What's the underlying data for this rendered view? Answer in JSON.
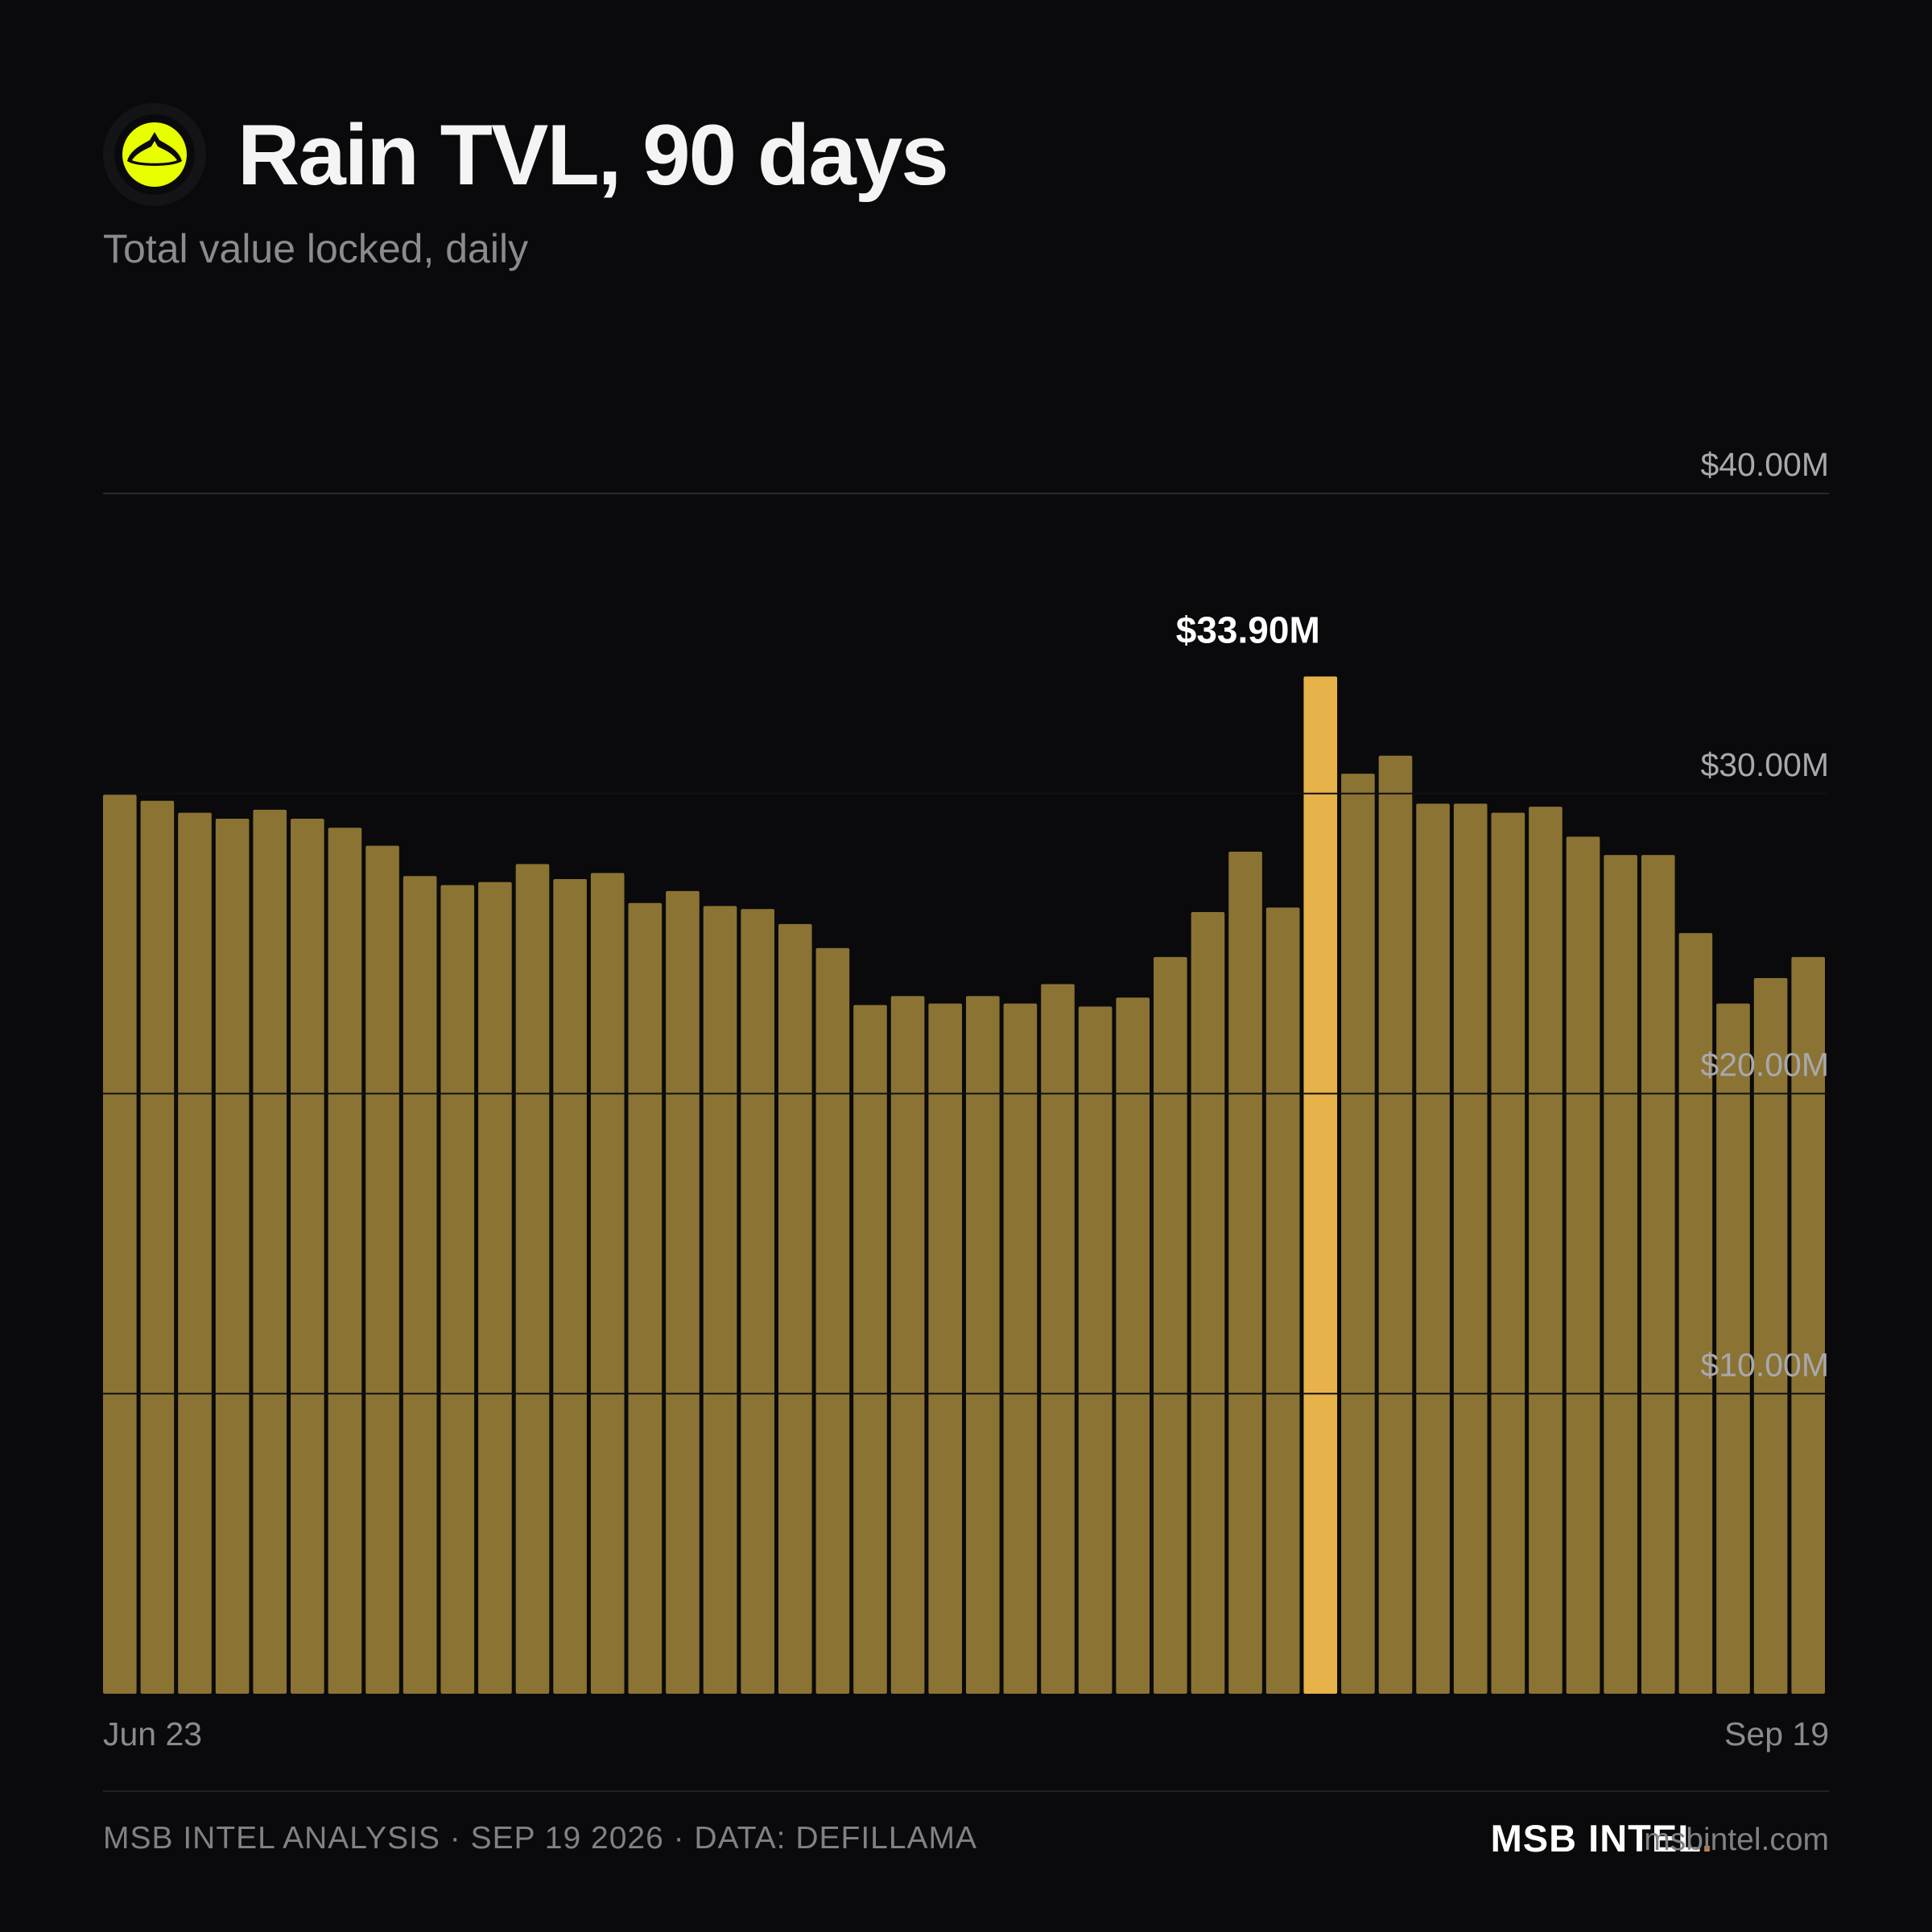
{
  "header": {
    "logo_icon": "rain-logo-icon",
    "title": "Rain TVL, 90 days",
    "subtitle": "Total value locked, daily"
  },
  "chart_data": {
    "type": "bar",
    "title": "Rain TVL, 90 days",
    "subtitle": "Total value locked, daily",
    "xlabel": "",
    "ylabel": "",
    "x_tick_labels": [
      "Jun 23",
      "Sep 19"
    ],
    "y_tick_labels": [
      "$10.00M",
      "$20.00M",
      "$30.00M",
      "$40.00M"
    ],
    "y_ticks": [
      10,
      20,
      30,
      40
    ],
    "ylim": [
      0,
      40
    ],
    "unit": "$M",
    "grid": true,
    "legend": "none",
    "bar_color": "#8b7333",
    "highlight_color": "#e8b24a",
    "highlight_index": 32,
    "highlight_label": "$33.90M",
    "values": [
      29.96,
      29.76,
      29.36,
      29.16,
      29.46,
      29.16,
      28.86,
      28.26,
      27.25,
      26.95,
      27.05,
      27.65,
      27.15,
      27.35,
      26.35,
      26.75,
      26.25,
      26.15,
      25.65,
      24.85,
      22.95,
      23.25,
      23.0,
      23.25,
      23.0,
      23.65,
      22.9,
      23.2,
      24.55,
      26.05,
      28.06,
      26.2,
      33.9,
      30.66,
      31.26,
      29.66,
      29.66,
      29.36,
      29.56,
      28.56,
      27.95,
      27.95,
      25.35,
      23.0,
      23.85,
      24.55
    ]
  },
  "footer": {
    "credit": "MSB INTEL ANALYSIS · SEP 19 2026 · DATA: DEFILLAMA",
    "brand": "MSB INTEL",
    "brand_dot": ".",
    "url": "msbintel.com"
  },
  "colors": {
    "background": "#0a0a0c",
    "bar": "#8b7333",
    "highlight": "#e8b24a",
    "logo_accent": "#e8ff00",
    "brand_dot": "#c8823a"
  }
}
